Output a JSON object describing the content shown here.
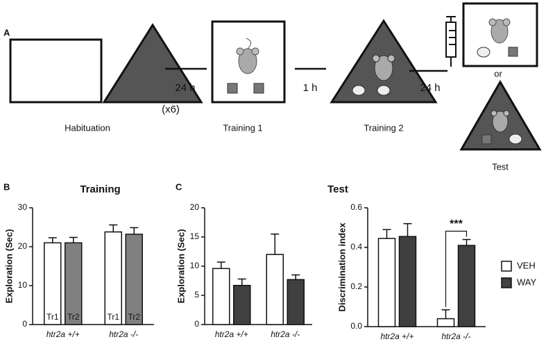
{
  "diagram": {
    "panel_label": "A",
    "intervals": [
      "24 h",
      "1 h",
      "24 h"
    ],
    "repeat": "(x6)",
    "stages": [
      "Habituation",
      "Training 1",
      "Training 2",
      "Test"
    ],
    "or": "or"
  },
  "panel_labels": [
    "B",
    "C"
  ],
  "test_title": "Test",
  "chart_data": [
    {
      "type": "bar",
      "title": "Training",
      "y_label": "Exploration (Sec)",
      "categories": [
        "htr2a +/+",
        "htr2a -/-"
      ],
      "series": [
        {
          "name": "Tr1",
          "color": "#ffffff",
          "values": [
            21,
            23.8
          ],
          "errors": [
            1.3,
            1.8
          ]
        },
        {
          "name": "Tr2",
          "color": "#808080",
          "values": [
            21,
            23.2
          ],
          "errors": [
            1.4,
            1.7
          ]
        }
      ],
      "inner_labels": true,
      "ylim": [
        0,
        30
      ],
      "yticks": [
        0,
        10,
        20,
        30
      ]
    },
    {
      "type": "bar",
      "y_label": "Exploration (Sec)",
      "categories": [
        "htr2a +/+",
        "htr2a -/-"
      ],
      "series": [
        {
          "name": "VEH",
          "color": "#ffffff",
          "values": [
            9.6,
            12.0
          ],
          "errors": [
            1.1,
            3.5
          ]
        },
        {
          "name": "WAY",
          "color": "#404040",
          "values": [
            6.7,
            7.7
          ],
          "errors": [
            1.1,
            0.8
          ]
        }
      ],
      "ylim": [
        0,
        20
      ],
      "yticks": [
        0,
        5,
        10,
        15,
        20
      ]
    },
    {
      "type": "bar",
      "y_label": "Discrimination index",
      "categories": [
        "htr2a +/+",
        "htr2a -/-"
      ],
      "series": [
        {
          "name": "VEH",
          "color": "#ffffff",
          "values": [
            0.445,
            0.04
          ],
          "errors": [
            0.045,
            0.045
          ]
        },
        {
          "name": "WAY",
          "color": "#404040",
          "values": [
            0.455,
            0.41
          ],
          "errors": [
            0.065,
            0.03
          ]
        }
      ],
      "annotations": [
        "***"
      ],
      "legend": "right",
      "ylim": [
        0,
        0.6
      ],
      "yticks": [
        {
          "value": 0,
          "label": "0.0"
        },
        0.2,
        0.4,
        0.6
      ]
    }
  ]
}
